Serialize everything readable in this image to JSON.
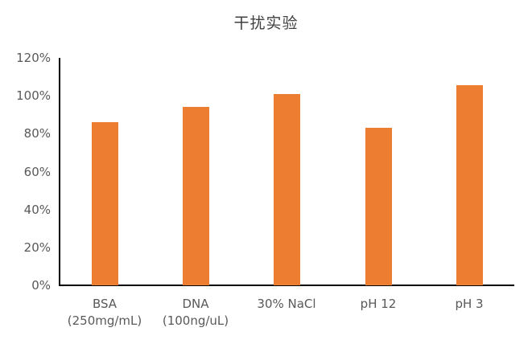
{
  "chart_data": {
    "type": "bar",
    "title": "干扰实验",
    "xlabel": "",
    "ylabel": "",
    "categories": [
      "BSA\n(250mg/mL)",
      "DNA\n(100ng/uL)",
      "30% NaCl",
      "pH 12",
      "pH 3"
    ],
    "values": [
      0.86,
      0.94,
      1.01,
      0.83,
      1.055
    ],
    "ylim": [
      0,
      1.2
    ],
    "yticks": [
      "0%",
      "20%",
      "40%",
      "60%",
      "80%",
      "100%",
      "120%"
    ],
    "grid": false,
    "legend": null,
    "bar_color": "#ED7D31"
  }
}
